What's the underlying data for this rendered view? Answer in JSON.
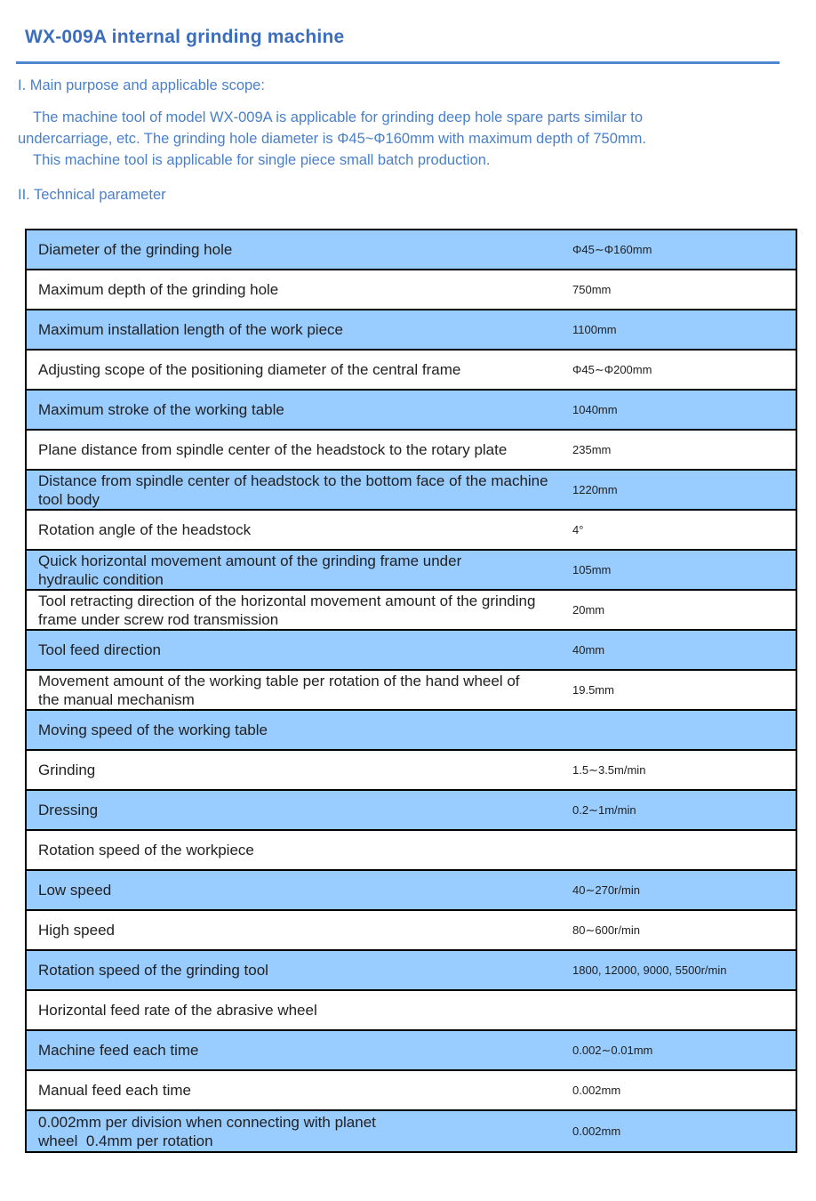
{
  "page": {
    "title": "WX-009A internal grinding machine"
  },
  "purpose_section": {
    "heading": "I. Main purpose and applicable scope:",
    "paragraph_lines": [
      "The machine tool of model WX-009A is applicable for grinding deep hole spare parts similar to",
      "undercarriage, etc. The grinding hole diameter is Φ45~Φ160mm with maximum depth of 750mm.",
      "This machine tool is applicable for single piece small batch production."
    ]
  },
  "technical_section": {
    "heading": "II. Technical parameter"
  },
  "parameters_table": {
    "rows": [
      {
        "label_lines": [
          "Diameter of the grinding hole"
        ],
        "value": "Φ45∼Φ160mm",
        "shaded": true
      },
      {
        "label_lines": [
          "Maximum depth of the grinding hole"
        ],
        "value": "750mm",
        "shaded": false
      },
      {
        "label_lines": [
          "Maximum installation length of the work piece"
        ],
        "value": "1100mm",
        "shaded": true
      },
      {
        "label_lines": [
          "Adjusting scope of the positioning diameter of the central frame"
        ],
        "value": "Φ45∼Φ200mm",
        "shaded": false
      },
      {
        "label_lines": [
          "Maximum stroke of the working table"
        ],
        "value": "1040mm",
        "shaded": true
      },
      {
        "label_lines": [
          "Plane distance from spindle center of the headstock to the rotary plate"
        ],
        "value": "235mm",
        "shaded": false
      },
      {
        "label_lines": [
          "Distance from spindle center of headstock to the bottom face of the machine",
          "tool body"
        ],
        "value": "1220mm",
        "shaded": true
      },
      {
        "label_lines": [
          "Rotation angle of the headstock"
        ],
        "value": "4°",
        "shaded": false
      },
      {
        "label_lines": [
          "Quick horizontal movement amount of the grinding frame under",
          "hydraulic condition"
        ],
        "value": "105mm",
        "shaded": true
      },
      {
        "label_lines": [
          "Tool retracting direction of the horizontal movement amount of the grinding",
          "frame under screw rod transmission"
        ],
        "value": "20mm",
        "shaded": false
      },
      {
        "label_lines": [
          "Tool feed direction"
        ],
        "value": "40mm",
        "shaded": true
      },
      {
        "label_lines": [
          "Movement amount of the working table per rotation of the hand wheel of",
          "the manual mechanism"
        ],
        "value": "19.5mm",
        "shaded": false
      },
      {
        "label_lines": [
          "Moving speed of the working table"
        ],
        "value": "",
        "shaded": true
      },
      {
        "label_lines": [
          "Grinding"
        ],
        "value": "1.5∼3.5m/min",
        "shaded": false
      },
      {
        "label_lines": [
          "Dressing"
        ],
        "value": "0.2∼1m/min",
        "shaded": true
      },
      {
        "label_lines": [
          "Rotation speed of the workpiece"
        ],
        "value": "",
        "shaded": false
      },
      {
        "label_lines": [
          "Low speed"
        ],
        "value": "40∼270r/min",
        "shaded": true
      },
      {
        "label_lines": [
          "High speed"
        ],
        "value": "80∼600r/min",
        "shaded": false
      },
      {
        "label_lines": [
          "Rotation speed of the grinding tool"
        ],
        "value": "1800, 12000, 9000, 5500r/min",
        "shaded": true
      },
      {
        "label_lines": [
          "Horizontal feed rate of the abrasive wheel"
        ],
        "value": "",
        "shaded": false
      },
      {
        "label_lines": [
          "Machine feed each time"
        ],
        "value": "0.002∼0.01mm",
        "shaded": true
      },
      {
        "label_lines": [
          "Manual feed each time"
        ],
        "value": "0.002mm",
        "shaded": false
      },
      {
        "label_lines": [
          "0.002mm per division when connecting with planet",
          "wheel  0.4mm per rotation"
        ],
        "value": "0.002mm",
        "shaded": true
      }
    ]
  },
  "colors": {
    "title_blue": "#3B6EBD",
    "body_blue": "#4A80CA",
    "rule_blue": "#4E86D0",
    "row_shade_blue": "#99CCFF",
    "table_border": "#000000",
    "table_text": "#212121"
  }
}
